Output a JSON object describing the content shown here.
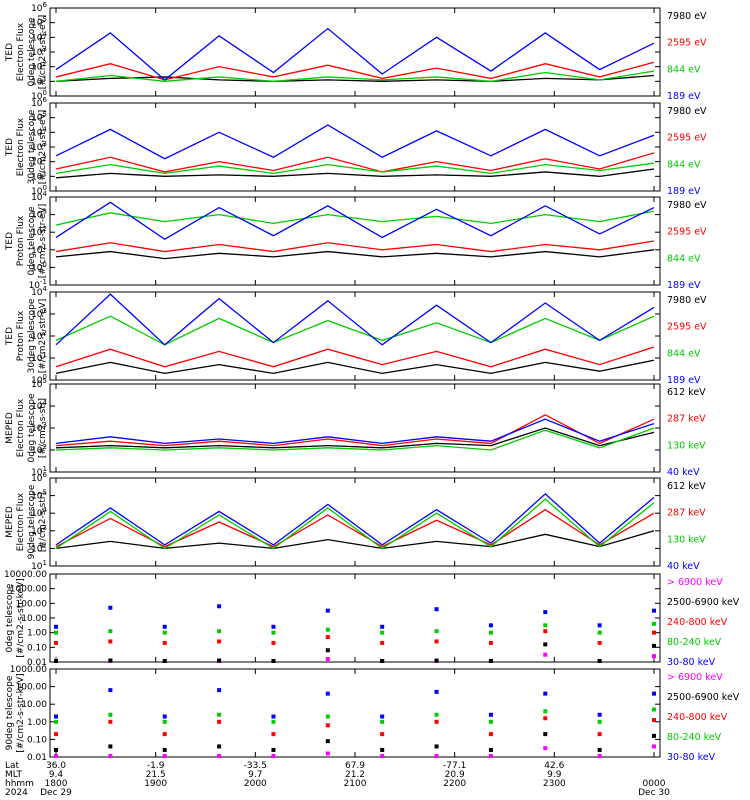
{
  "chart_data": [
    {
      "type": "line",
      "panel": "TED 0deg telescope electron flux",
      "ylabel_lines": [
        "TED",
        "Electron Flux",
        "0deg telescope",
        "[#/cm2-s-str-eV]"
      ],
      "scale": "log",
      "yticks": [
        "10^{0}",
        "10^{1}",
        "10^{2}",
        "10^{3}",
        "10^{4}",
        "10^{5}",
        "10^{6}"
      ],
      "legend": [
        {
          "name": "7980 eV",
          "color": "#000000"
        },
        {
          "name": "2595 eV",
          "color": "#ff0000"
        },
        {
          "name": "844 eV",
          "color": "#00cc00"
        },
        {
          "name": "189 eV",
          "color": "#0000ff"
        }
      ],
      "series": [
        {
          "name": "7980 eV",
          "values": [
            1.0,
            1.2,
            1.3,
            1.1,
            1.0,
            1.1,
            1.0,
            1.1,
            1.0,
            1.2,
            1.1,
            1.4
          ]
        },
        {
          "name": "2595 eV",
          "values": [
            1.3,
            2.2,
            1.1,
            2.0,
            1.3,
            2.1,
            1.2,
            1.9,
            1.2,
            2.2,
            1.3,
            2.3
          ]
        },
        {
          "name": "844 eV",
          "values": [
            1.0,
            1.4,
            1.0,
            1.3,
            1.0,
            1.3,
            1.1,
            1.3,
            1.0,
            1.6,
            1.1,
            1.7
          ]
        },
        {
          "name": "189 eV",
          "values": [
            1.8,
            4.3,
            1.1,
            4.1,
            1.6,
            4.6,
            1.5,
            4.0,
            1.7,
            4.3,
            1.8,
            3.6
          ]
        }
      ]
    },
    {
      "type": "line",
      "panel": "TED 30deg telescope electron flux",
      "ylabel_lines": [
        "TED",
        "Electron Flux",
        "30deg telescope",
        "[#/cm2-s-str-eV]"
      ],
      "scale": "log",
      "yticks": [
        "10^{0}",
        "10^{1}",
        "10^{2}",
        "10^{3}",
        "10^{4}",
        "10^{5}",
        "10^{6}"
      ],
      "legend": [
        {
          "name": "7980 eV",
          "color": "#000000"
        },
        {
          "name": "2595 eV",
          "color": "#ff0000"
        },
        {
          "name": "844 eV",
          "color": "#00cc00"
        },
        {
          "name": "189 eV",
          "color": "#0000ff"
        }
      ],
      "series": [
        {
          "name": "7980 eV",
          "values": [
            0.9,
            1.2,
            1.0,
            1.1,
            1.0,
            1.2,
            1.0,
            1.1,
            1.0,
            1.3,
            1.0,
            1.5
          ]
        },
        {
          "name": "2595 eV",
          "values": [
            1.5,
            2.3,
            1.3,
            2.0,
            1.4,
            2.3,
            1.3,
            2.0,
            1.4,
            2.2,
            1.5,
            2.6
          ]
        },
        {
          "name": "844 eV",
          "values": [
            1.2,
            1.8,
            1.2,
            1.7,
            1.2,
            1.8,
            1.3,
            1.7,
            1.2,
            1.8,
            1.4,
            1.9
          ]
        },
        {
          "name": "189 eV",
          "values": [
            2.4,
            4.2,
            2.2,
            4.0,
            2.3,
            4.5,
            2.3,
            4.1,
            2.4,
            4.2,
            2.4,
            3.8
          ]
        }
      ]
    },
    {
      "type": "line",
      "panel": "TED 0deg telescope proton flux",
      "ylabel_lines": [
        "TED",
        "Proton Flux",
        "0deg telescope",
        "[#/cm2-s-str-eV]"
      ],
      "scale": "log",
      "yticks": [
        "10^{-1}",
        "10^{0}",
        "10^{1}",
        "10^{2}",
        "10^{3}",
        "10^{4}"
      ],
      "legend": [
        {
          "name": "7980 eV",
          "color": "#000000"
        },
        {
          "name": "2595 eV",
          "color": "#ff0000"
        },
        {
          "name": "844 eV",
          "color": "#00cc00"
        },
        {
          "name": "189 eV",
          "color": "#0000ff"
        }
      ],
      "series": [
        {
          "name": "7980 eV",
          "values": [
            0.6,
            0.9,
            0.5,
            0.8,
            0.6,
            0.9,
            0.6,
            0.8,
            0.6,
            0.9,
            0.6,
            1.0
          ]
        },
        {
          "name": "2595 eV",
          "values": [
            0.9,
            1.4,
            0.9,
            1.3,
            0.9,
            1.4,
            1.0,
            1.3,
            0.9,
            1.3,
            1.0,
            1.5
          ]
        },
        {
          "name": "844 eV",
          "values": [
            2.4,
            3.1,
            2.6,
            3.0,
            2.5,
            3.0,
            2.6,
            2.9,
            2.5,
            3.0,
            2.6,
            3.2
          ]
        },
        {
          "name": "189 eV",
          "values": [
            1.7,
            3.7,
            1.6,
            3.4,
            1.8,
            3.5,
            1.7,
            3.3,
            1.8,
            3.5,
            1.9,
            3.4
          ]
        }
      ]
    },
    {
      "type": "line",
      "panel": "TED 30deg telescope proton flux",
      "ylabel_lines": [
        "TED",
        "Proton Flux",
        "30deg telescope",
        "[#/cm2-s-str-eV]"
      ],
      "scale": "log",
      "yticks": [
        "10^{0}",
        "10^{1}",
        "10^{2}",
        "10^{3}",
        "10^{4}"
      ],
      "legend": [
        {
          "name": "7980 eV",
          "color": "#000000"
        },
        {
          "name": "2595 eV",
          "color": "#ff0000"
        },
        {
          "name": "844 eV",
          "color": "#00cc00"
        },
        {
          "name": "189 eV",
          "color": "#0000ff"
        }
      ],
      "series": [
        {
          "name": "7980 eV",
          "values": [
            0.3,
            0.8,
            0.3,
            0.7,
            0.3,
            0.8,
            0.3,
            0.7,
            0.3,
            0.8,
            0.4,
            0.9
          ]
        },
        {
          "name": "2595 eV",
          "values": [
            0.6,
            1.4,
            0.6,
            1.3,
            0.6,
            1.4,
            0.7,
            1.3,
            0.6,
            1.4,
            0.7,
            1.5
          ]
        },
        {
          "name": "844 eV",
          "values": [
            1.8,
            2.9,
            1.6,
            2.8,
            1.7,
            2.7,
            1.8,
            2.6,
            1.7,
            2.8,
            1.8,
            2.9
          ]
        },
        {
          "name": "189 eV",
          "values": [
            1.6,
            3.9,
            1.6,
            3.7,
            1.7,
            3.6,
            1.6,
            3.4,
            1.7,
            3.5,
            1.8,
            3.3
          ]
        }
      ]
    },
    {
      "type": "line",
      "panel": "MEPED 0deg telescope electron flux",
      "ylabel_lines": [
        "MEPED",
        "Electron Flux",
        "0deg telescope",
        "[#/cm2-s-str]"
      ],
      "scale": "log",
      "yticks": [
        "10^{1}",
        "10^{2}",
        "10^{3}",
        "10^{4}",
        "10^{5}"
      ],
      "legend": [
        {
          "name": "612 keV",
          "color": "#000000"
        },
        {
          "name": "287 keV",
          "color": "#ff0000"
        },
        {
          "name": "130 keV",
          "color": "#00cc00"
        },
        {
          "name": "40 keV",
          "color": "#0000ff"
        }
      ],
      "series": [
        {
          "name": "612 keV",
          "values": [
            2.1,
            2.2,
            2.1,
            2.2,
            2.1,
            2.2,
            2.1,
            2.3,
            2.2,
            3.0,
            2.2,
            2.8
          ]
        },
        {
          "name": "287 keV",
          "values": [
            2.2,
            2.4,
            2.2,
            2.4,
            2.2,
            2.5,
            2.2,
            2.5,
            2.3,
            3.6,
            2.3,
            3.4
          ]
        },
        {
          "name": "130 keV",
          "values": [
            2.0,
            2.1,
            2.0,
            2.1,
            2.0,
            2.1,
            2.0,
            2.2,
            2.0,
            2.9,
            2.1,
            3.0
          ]
        },
        {
          "name": "40 keV",
          "values": [
            2.3,
            2.6,
            2.3,
            2.5,
            2.3,
            2.6,
            2.3,
            2.6,
            2.4,
            3.4,
            2.4,
            3.2
          ]
        }
      ]
    },
    {
      "type": "line",
      "panel": "MEPED 90deg telescope electron flux",
      "ylabel_lines": [
        "MEPED",
        "Electron Flux",
        "90deg telescope",
        "[#/cm2-s-str]"
      ],
      "scale": "log",
      "yticks": [
        "10^{1}",
        "10^{2}",
        "10^{3}",
        "10^{4}",
        "10^{5}",
        "10^{6}"
      ],
      "legend": [
        {
          "name": "612 keV",
          "color": "#000000"
        },
        {
          "name": "287 keV",
          "color": "#ff0000"
        },
        {
          "name": "130 keV",
          "color": "#00cc00"
        },
        {
          "name": "40 keV",
          "color": "#0000ff"
        }
      ],
      "series": [
        {
          "name": "612 keV",
          "values": [
            2.0,
            2.4,
            2.0,
            2.3,
            2.0,
            2.5,
            2.0,
            2.4,
            2.1,
            2.8,
            2.1,
            3.0
          ]
        },
        {
          "name": "287 keV",
          "values": [
            2.1,
            3.7,
            2.1,
            3.5,
            2.1,
            3.9,
            2.1,
            3.6,
            2.2,
            4.2,
            2.2,
            4.0
          ]
        },
        {
          "name": "130 keV",
          "values": [
            2.0,
            4.1,
            2.0,
            3.9,
            2.0,
            4.3,
            2.0,
            4.0,
            2.1,
            4.8,
            2.1,
            4.6
          ]
        },
        {
          "name": "40 keV",
          "values": [
            2.2,
            4.3,
            2.2,
            4.1,
            2.2,
            4.5,
            2.2,
            4.2,
            2.3,
            5.1,
            2.3,
            4.9
          ]
        }
      ]
    },
    {
      "type": "scatter",
      "panel": "MEPED 0deg telescope proton flux",
      "ylabel_lines": [
        "0deg telescope",
        "[#/cm2-s-str-keV]"
      ],
      "scale": "log",
      "yticks": [
        "0.01",
        "0.10",
        "1.00",
        "10.00",
        "100.00",
        "1000.00",
        "10000.00"
      ],
      "legend": [
        {
          "name": "> 6900 keV",
          "color": "#ff00ff"
        },
        {
          "name": "2500-6900 keV",
          "color": "#000000"
        },
        {
          "name": "240-800 keV",
          "color": "#ff0000"
        },
        {
          "name": "80-240 keV",
          "color": "#00cc00"
        },
        {
          "name": "30-80 keV",
          "color": "#0000ff"
        }
      ],
      "series": [
        {
          "name": "> 6900 keV",
          "values": [
            -2.1,
            -2.1,
            -2.1,
            -2.1,
            -2.1,
            -1.8,
            -2.1,
            -2.1,
            -2.1,
            -1.5,
            -2.1,
            -1.6
          ]
        },
        {
          "name": "2500-6900 keV",
          "values": [
            -2.0,
            -1.9,
            -2.0,
            -1.9,
            -2.0,
            -1.2,
            -2.0,
            -1.9,
            -2.0,
            -0.8,
            -2.0,
            -0.9
          ]
        },
        {
          "name": "240-800 keV",
          "values": [
            -0.7,
            -0.6,
            -0.7,
            -0.6,
            -0.7,
            -0.3,
            -0.7,
            -0.6,
            -0.7,
            0.1,
            -0.7,
            0.0
          ]
        },
        {
          "name": "80-240 keV",
          "values": [
            0.0,
            0.1,
            0.0,
            0.1,
            0.0,
            0.2,
            0.0,
            0.1,
            0.0,
            0.5,
            0.0,
            0.6
          ]
        },
        {
          "name": "30-80 keV",
          "values": [
            0.4,
            1.7,
            0.4,
            1.8,
            0.4,
            1.5,
            0.4,
            1.6,
            0.5,
            1.4,
            0.5,
            1.5
          ]
        }
      ]
    },
    {
      "type": "scatter",
      "panel": "MEPED 90deg telescope proton flux",
      "ylabel_lines": [
        "90deg telescope",
        "[#/cm2-s-str-keV]"
      ],
      "scale": "log",
      "yticks": [
        "0.01",
        "0.10",
        "1.00",
        "10.00",
        "100.00",
        "1000.00"
      ],
      "legend": [
        {
          "name": "> 6900 keV",
          "color": "#ff00ff"
        },
        {
          "name": "2500-6900 keV",
          "color": "#000000"
        },
        {
          "name": "240-800 keV",
          "color": "#ff0000"
        },
        {
          "name": "80-240 keV",
          "color": "#00cc00"
        },
        {
          "name": "30-80 keV",
          "color": "#0000ff"
        }
      ],
      "series": [
        {
          "name": "> 6900 keV",
          "values": [
            -2.0,
            -2.0,
            -2.0,
            -2.0,
            -2.0,
            -1.8,
            -2.0,
            -2.0,
            -2.0,
            -1.5,
            -2.0,
            -1.4
          ]
        },
        {
          "name": "2500-6900 keV",
          "values": [
            -1.6,
            -1.4,
            -1.6,
            -1.4,
            -1.6,
            -1.1,
            -1.6,
            -1.4,
            -1.6,
            -0.7,
            -1.6,
            -0.8
          ]
        },
        {
          "name": "240-800 keV",
          "values": [
            -0.7,
            0.0,
            -0.7,
            0.0,
            -0.7,
            -0.2,
            -0.7,
            0.0,
            -0.7,
            0.2,
            -0.7,
            0.1
          ]
        },
        {
          "name": "80-240 keV",
          "values": [
            0.0,
            0.4,
            0.0,
            0.4,
            0.0,
            0.3,
            0.0,
            0.4,
            0.0,
            0.6,
            0.0,
            0.7
          ]
        },
        {
          "name": "30-80 keV",
          "values": [
            0.3,
            1.8,
            0.3,
            1.8,
            0.3,
            1.6,
            0.3,
            1.7,
            0.4,
            1.6,
            0.4,
            1.6
          ]
        }
      ]
    }
  ],
  "xaxis": {
    "row_labels": [
      "Lat",
      "MLT",
      "hhmm",
      "2024"
    ],
    "ticks": [
      {
        "lat": "36.0",
        "mlt": "9.4",
        "hhmm": "1800",
        "date": "Dec 29"
      },
      {
        "lat": "-1.9",
        "mlt": "21.5",
        "hhmm": "1900",
        "date": ""
      },
      {
        "lat": "-33.5",
        "mlt": "9.7",
        "hhmm": "2000",
        "date": ""
      },
      {
        "lat": "67.9",
        "mlt": "21.2",
        "hhmm": "2100",
        "date": ""
      },
      {
        "lat": "-77.1",
        "mlt": "20.9",
        "hhmm": "2200",
        "date": ""
      },
      {
        "lat": "42.6",
        "mlt": "9.9",
        "hhmm": "2300",
        "date": ""
      },
      {
        "lat": "",
        "mlt": "",
        "hhmm": "0000",
        "date": "Dec 30"
      }
    ]
  }
}
